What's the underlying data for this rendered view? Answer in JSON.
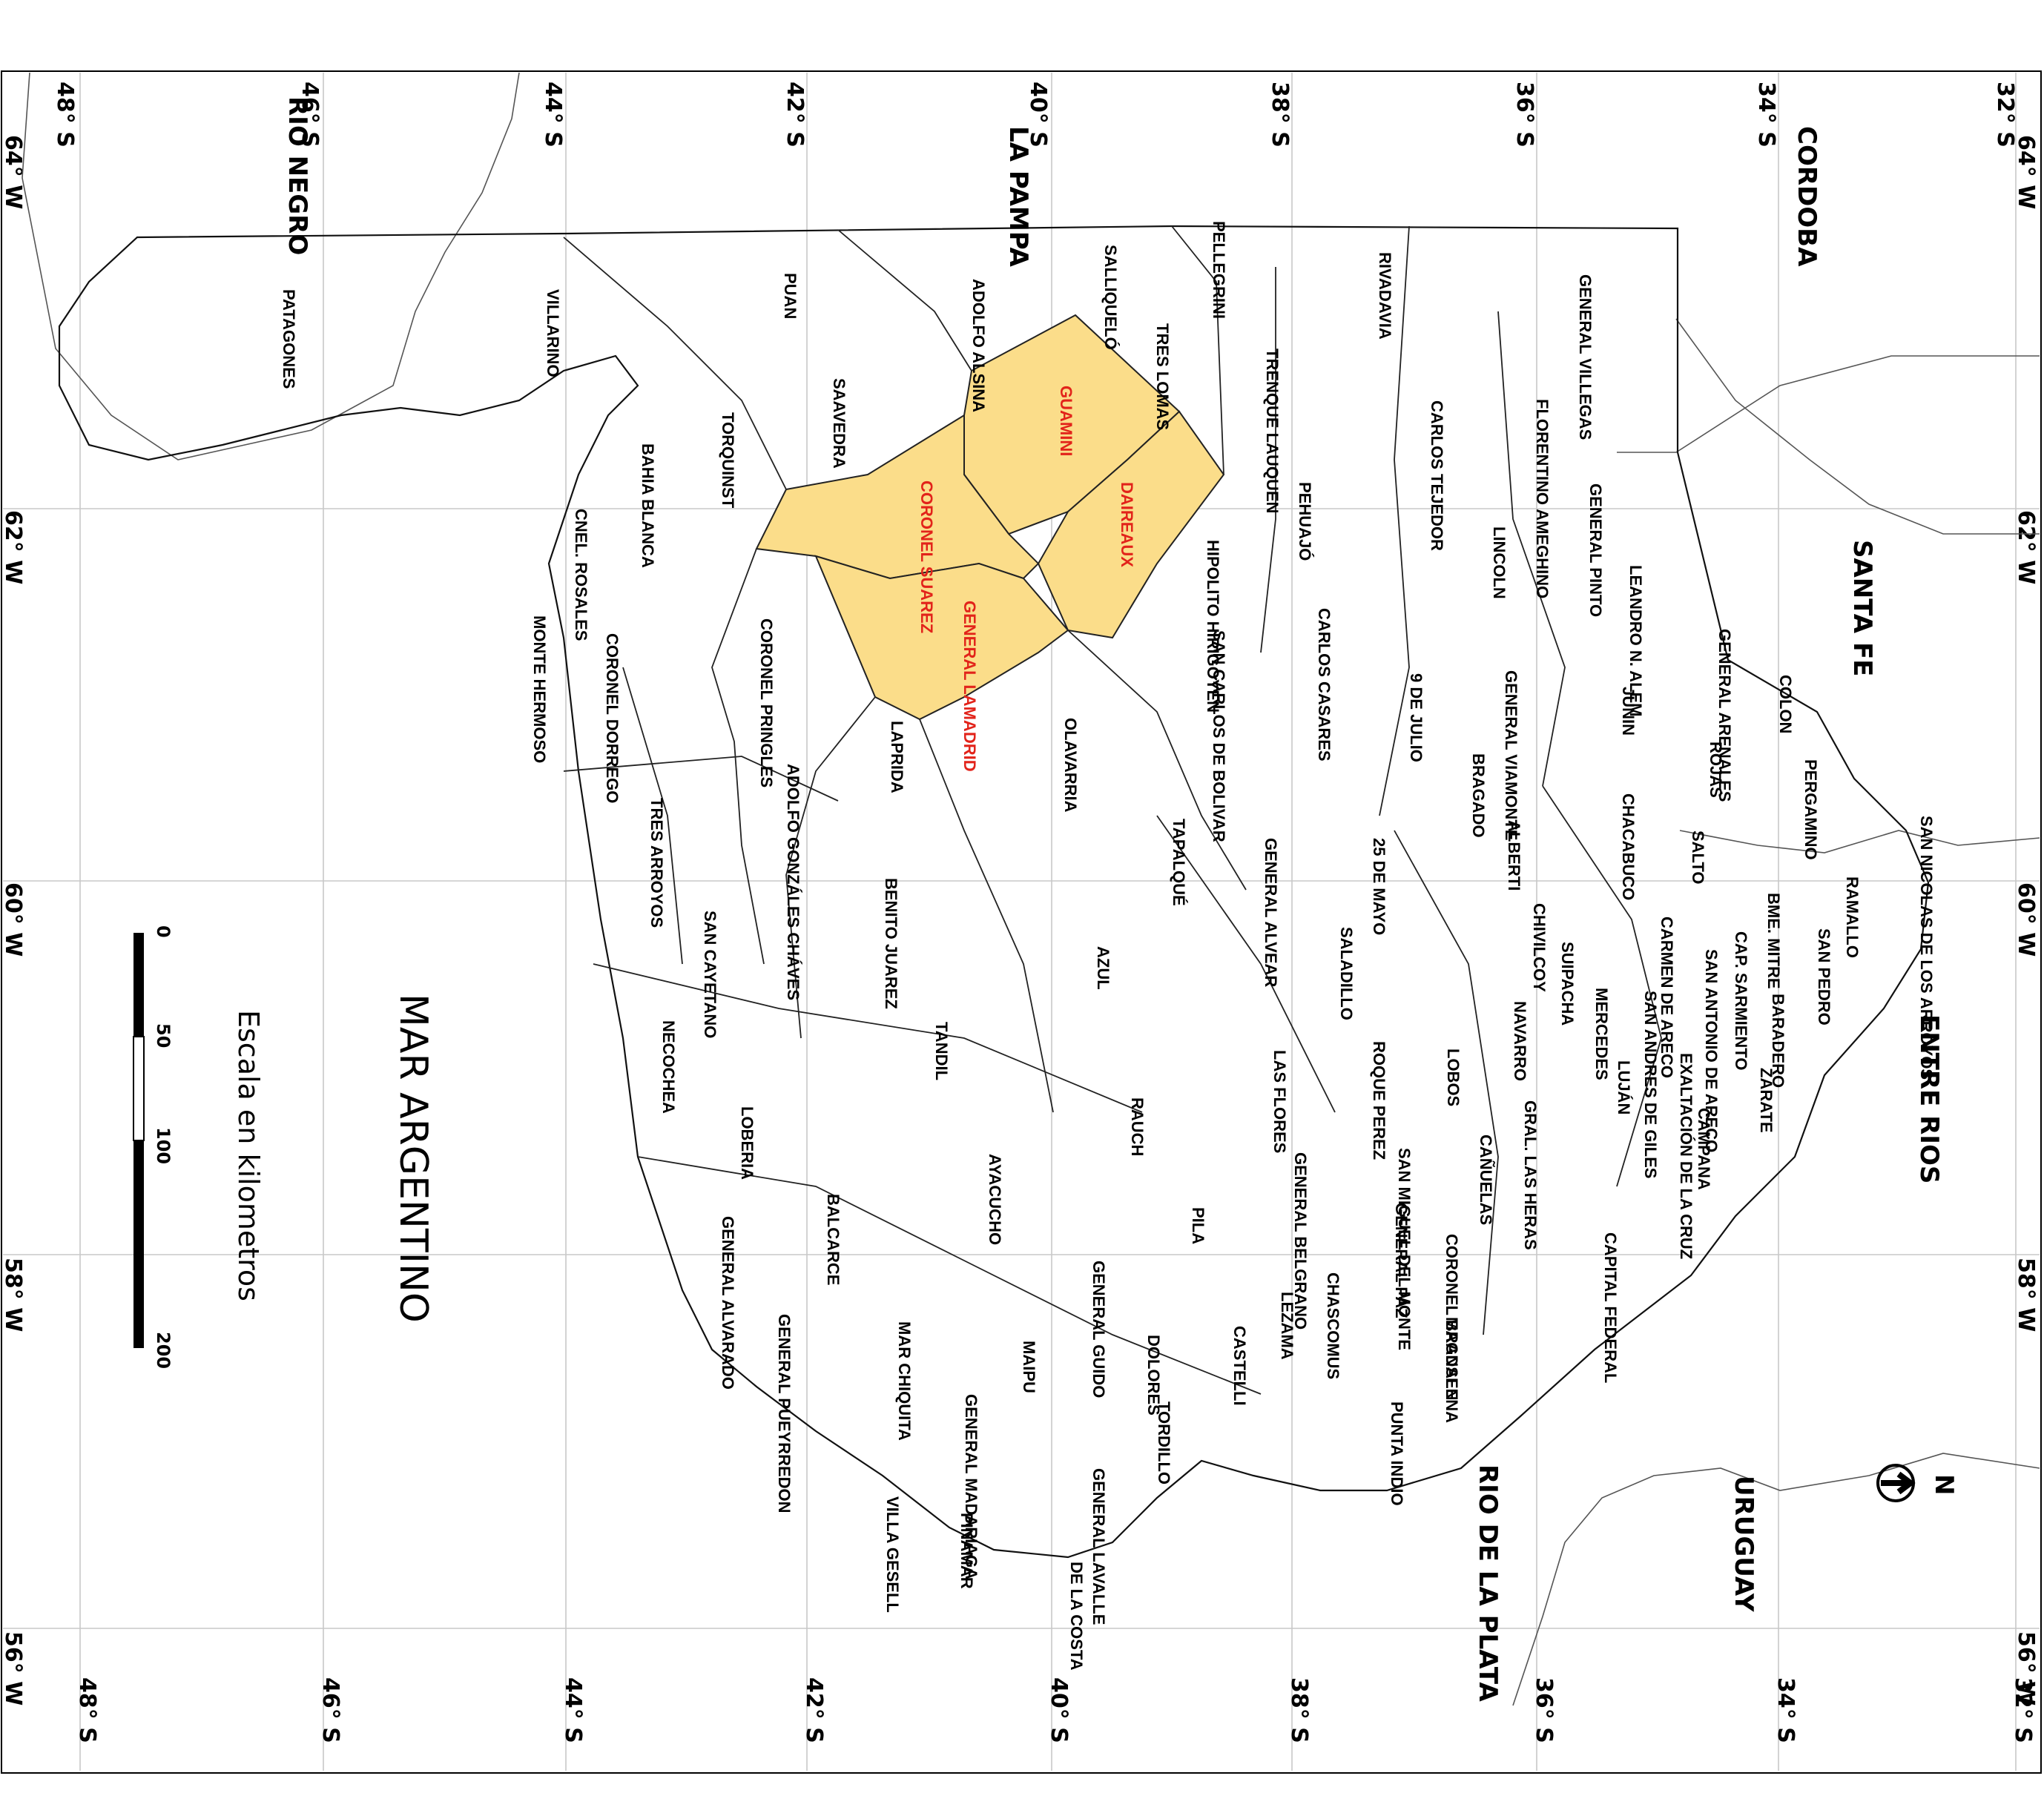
{
  "map": {
    "grid_top": [
      "48° S",
      "46° S",
      "44° S",
      "42° S",
      "40° S",
      "38° S",
      "36° S",
      "34° S",
      "32° S"
    ],
    "grid_bottom": [
      "48° S",
      "46° S",
      "44° S",
      "42° S",
      "40° S",
      "38° S",
      "36° S",
      "34° S",
      "32° S"
    ],
    "grid_left": [
      "64° W",
      "62° W",
      "60° W",
      "58° W",
      "56° W"
    ],
    "grid_right": [
      "64° W",
      "62° W",
      "60° W",
      "58° W",
      "56° W"
    ],
    "neighbors": {
      "rio_negro": "RIO NEGRO",
      "la_pampa": "LA PAMPA",
      "cordoba": "CORDOBA",
      "santa_fe": "SANTA FE",
      "entre_rios": "ENTRE RIOS",
      "uruguay": "URUGUAY",
      "rio_de_la_plata": "RIO DE LA PLATA",
      "mar_argentino": "MAR ARGENTINO"
    },
    "highlighted_color": "#fbdd8a",
    "highlight_label_color": "#e2231a",
    "highlighted": [
      "GUAMINI",
      "DAIREAUX",
      "CORONEL SUAREZ",
      "GENERAL LAMADRID"
    ],
    "partidos": [
      "PATAGONES",
      "VILLARINO",
      "PUAN",
      "ADOLFO ALSINA",
      "SALLIQUELÓ",
      "PELLEGRINI",
      "TRES LOMAS",
      "RIVADAVIA",
      "GENERAL VILLEGAS",
      "TRENQUE LAUQUEN",
      "CARLOS TEJEDOR",
      "FLORENTINO AMEGHINO",
      "GENERAL PINTO",
      "LEANDRO N. ALEM",
      "LINCOLN",
      "PEHUAJÓ",
      "CARLOS CASARES",
      "HIPOLITO HIRIGOYEN",
      "SAN CARLOS DE BOLIVAR",
      "SAAVEDRA",
      "TORQUINST",
      "BAHIA BLANCA",
      "CNEL. ROSALES",
      "MONTE HERMOSO",
      "CORONEL DORREGO",
      "CORONEL PRINGLES",
      "TRES ARROYOS",
      "ADOLFO GONZÁLES CHÁVES",
      "LAPRIDA",
      "OLAVARRIA",
      "TAPALQUÉ",
      "GENERAL ALVEAR",
      "25 DE MAYO",
      "9 DE JULIO",
      "GENERAL VIAMONTE",
      "BRAGADO",
      "ALBERTI",
      "JUNIN",
      "GENERAL ARENALES",
      "COLON",
      "ROJAS",
      "PERGAMINO",
      "SALTO",
      "CHACABUCO",
      "CHIVILCOY",
      "SAN NICOLAS DE LOS ARROYOS",
      "RAMALLO",
      "SAN PEDRO",
      "BME. MITRE",
      "CAP. SARMIENTO",
      "CARMEN DE ARECO",
      "SAN ANTONIO DE ARECO",
      "SUIPACHA",
      "MERCEDES",
      "SAN ANDRES DE GILES",
      "EXALTACIÓN DE LA CRUZ",
      "BARADERO",
      "ZARATE",
      "CAMPANA",
      "LUJÁN",
      "NAVARRO",
      "LOBOS",
      "SALADILLO",
      "ROQUE PEREZ",
      "LAS FLORES",
      "AZUL",
      "BENITO JUAREZ",
      "SAN CAYETANO",
      "NECOCHEA",
      "LOBERIA",
      "TANDIL",
      "RAUCH",
      "GENERAL BELGRANO",
      "SAN MIGUEL DEL MONTE",
      "GRAL. LAS HERAS",
      "CAÑUELAS",
      "GENERAL PAZ",
      "CORONEL BRANSEN",
      "CAPITAL FEDERAL",
      "CHASCOMUS",
      "MAGDALENA",
      "PUNTA INDIO",
      "LEZAMA",
      "PILA",
      "AYACUCHO",
      "BALCARCE",
      "GENERAL ALVARADO",
      "GENERAL PUEYRREDON",
      "MAR CHIQUITA",
      "GENERAL GUIDO",
      "MAIPU",
      "DOLORES",
      "CASTELLI",
      "TORDILLO",
      "GENERAL MADARIAGA",
      "PINAMAR",
      "VILLA GESELL",
      "GENERAL LAVALLE",
      "DE LA COSTA"
    ],
    "scale": {
      "title": "Escala en kilometros",
      "ticks": [
        "0",
        "50",
        "100",
        "200"
      ]
    },
    "north": "N"
  }
}
